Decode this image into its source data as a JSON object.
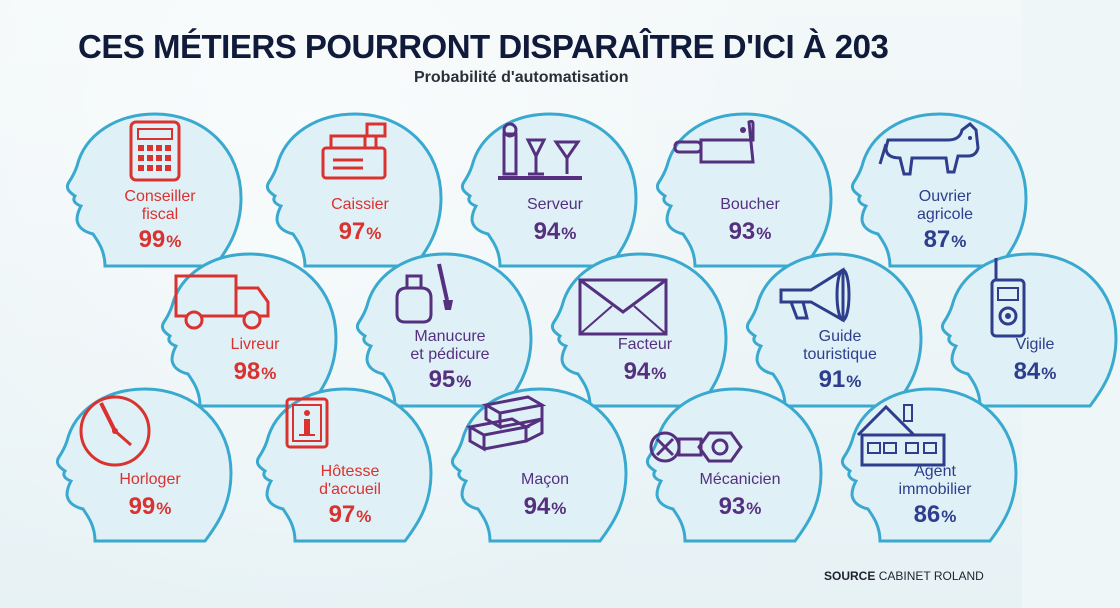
{
  "title": "CES MÉTIERS POURRONT DISPARAÎTRE D'ICI À 203",
  "subtitle": "Probabilité d'automatisation",
  "source": {
    "label": "SOURCE",
    "name": "CABINET ROLAND"
  },
  "colors": {
    "red": "#d9322f",
    "purple": "#55307f",
    "blue": "#2e3e8c",
    "head_outline": "#3aa9cf",
    "head_fill": "#dff1f7"
  },
  "chart_data": {
    "type": "table",
    "title": "CES MÉTIERS POURRONT DISPARAÎTRE D'ICI À 203",
    "subtitle": "Probabilité d'automatisation",
    "unit": "%",
    "items": [
      {
        "name": "Conseiller fiscal",
        "lines": [
          "Conseiller",
          "fiscal"
        ],
        "value": 99,
        "color": "red",
        "icon": "calculator-icon"
      },
      {
        "name": "Caissier",
        "lines": [
          "Caissier"
        ],
        "value": 97,
        "color": "red",
        "icon": "cash-register-icon"
      },
      {
        "name": "Serveur",
        "lines": [
          "Serveur"
        ],
        "value": 94,
        "color": "purple",
        "icon": "serving-tray-icon"
      },
      {
        "name": "Boucher",
        "lines": [
          "Boucher"
        ],
        "value": 93,
        "color": "purple",
        "icon": "cleaver-icon"
      },
      {
        "name": "Ouvrier agricole",
        "lines": [
          "Ouvrier",
          "agricole"
        ],
        "value": 87,
        "color": "blue",
        "icon": "cow-icon"
      },
      {
        "name": "Livreur",
        "lines": [
          "Livreur"
        ],
        "value": 98,
        "color": "red",
        "icon": "truck-icon"
      },
      {
        "name": "Manucure et pédicure",
        "lines": [
          "Manucure",
          "et pédicure"
        ],
        "value": 95,
        "color": "purple",
        "icon": "nail-polish-icon"
      },
      {
        "name": "Facteur",
        "lines": [
          "Facteur"
        ],
        "value": 94,
        "color": "purple",
        "icon": "envelope-icon"
      },
      {
        "name": "Guide touristique",
        "lines": [
          "Guide",
          "touristique"
        ],
        "value": 91,
        "color": "blue",
        "icon": "megaphone-icon"
      },
      {
        "name": "Vigile",
        "lines": [
          "Vigile"
        ],
        "value": 84,
        "color": "blue",
        "icon": "walkie-talkie-icon"
      },
      {
        "name": "Horloger",
        "lines": [
          "Horloger"
        ],
        "value": 99,
        "color": "red",
        "icon": "clock-icon"
      },
      {
        "name": "Hôtesse d'accueil",
        "lines": [
          "Hôtesse",
          "d'accueil"
        ],
        "value": 97,
        "color": "red",
        "icon": "info-sign-icon"
      },
      {
        "name": "Maçon",
        "lines": [
          "Maçon"
        ],
        "value": 94,
        "color": "purple",
        "icon": "bricks-icon"
      },
      {
        "name": "Mécanicien",
        "lines": [
          "Mécanicien"
        ],
        "value": 93,
        "color": "purple",
        "icon": "bolt-nut-icon"
      },
      {
        "name": "Agent immobilier",
        "lines": [
          "Agent",
          "immobilier"
        ],
        "value": 86,
        "color": "blue",
        "icon": "house-icon"
      }
    ]
  }
}
